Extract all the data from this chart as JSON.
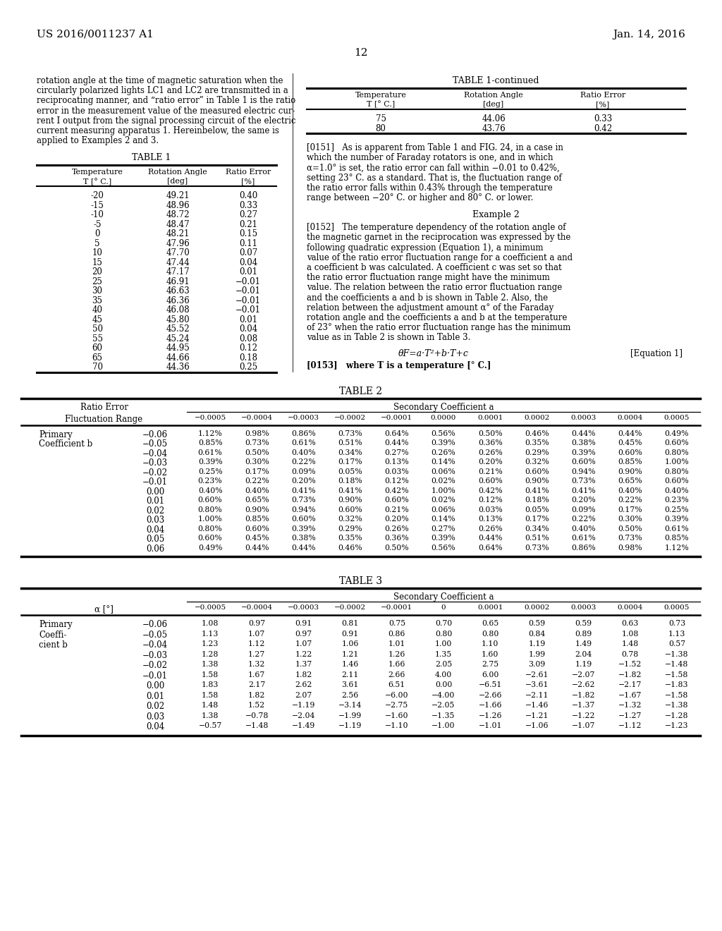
{
  "page_header_left": "US 2016/0011237 A1",
  "page_header_right": "Jan. 14, 2016",
  "page_number": "12",
  "left_col_text": [
    "rotation angle at the time of magnetic saturation when the",
    "circularly polarized lights LC1 and LC2 are transmitted in a",
    "reciprocating manner, and “ratio error” in Table 1 is the ratio",
    "error in the measurement value of the measured electric cur-",
    "rent I output from the signal processing circuit of the electric",
    "current measuring apparatus 1. Hereinbelow, the same is",
    "applied to Examples 2 and 3."
  ],
  "table1_title": "TABLE 1",
  "table1_data": [
    [
      "-20",
      "49.21",
      "0.40"
    ],
    [
      "-15",
      "48.96",
      "0.33"
    ],
    [
      "-10",
      "48.72",
      "0.27"
    ],
    [
      "-5",
      "48.47",
      "0.21"
    ],
    [
      "0",
      "48.21",
      "0.15"
    ],
    [
      "5",
      "47.96",
      "0.11"
    ],
    [
      "10",
      "47.70",
      "0.07"
    ],
    [
      "15",
      "47.44",
      "0.04"
    ],
    [
      "20",
      "47.17",
      "0.01"
    ],
    [
      "25",
      "46.91",
      "−0.01"
    ],
    [
      "30",
      "46.63",
      "−0.01"
    ],
    [
      "35",
      "46.36",
      "−0.01"
    ],
    [
      "40",
      "46.08",
      "−0.01"
    ],
    [
      "45",
      "45.80",
      "0.01"
    ],
    [
      "50",
      "45.52",
      "0.04"
    ],
    [
      "55",
      "45.24",
      "0.08"
    ],
    [
      "60",
      "44.95",
      "0.12"
    ],
    [
      "65",
      "44.66",
      "0.18"
    ],
    [
      "70",
      "44.36",
      "0.25"
    ]
  ],
  "table1c_title": "TABLE 1-continued",
  "table1c_data": [
    [
      "75",
      "44.06",
      "0.33"
    ],
    [
      "80",
      "43.76",
      "0.42"
    ]
  ],
  "para0151_lines": [
    "[0151]   As is apparent from Table 1 and FIG. 24, in a case in",
    "which the number of Faraday rotators is one, and in which",
    "α=1.0° is set, the ratio error can fall within −0.01 to 0.42%,",
    "setting 23° C. as a standard. That is, the fluctuation range of",
    "the ratio error falls within 0.43% through the temperature",
    "range between −20° C. or higher and 80° C. or lower."
  ],
  "example2_title": "Example 2",
  "para0152_lines": [
    "[0152]   The temperature dependency of the rotation angle of",
    "the magnetic garnet in the reciprocation was expressed by the",
    "following quadratic expression (Equation 1), a minimum",
    "value of the ratio error fluctuation range for a coefficient a and",
    "a coefficient b was calculated. A coefficient c was set so that",
    "the ratio error fluctuation range might have the minimum",
    "value. The relation between the ratio error fluctuation range",
    "and the coefficients a and b is shown in Table 2. Also, the",
    "relation between the adjustment amount α° of the Faraday",
    "rotation angle and the coefficients a and b at the temperature",
    "of 23° when the ratio error fluctuation range has the minimum",
    "value as in Table 2 is shown in Table 3."
  ],
  "equation": "θF=a·T²+b·T+c",
  "equation_label": "[Equation 1]",
  "para0153": "[0153]   where T is a temperature [° C.]",
  "table2_title": "TABLE 2",
  "table2_ratio_error": "Ratio Error",
  "table2_secondary": "Secondary Coefficient a",
  "table2_fluctuation": "Fluctuation Range",
  "table2_a_headers": [
    "−0.0005",
    "−0.0004",
    "−0.0003",
    "−0.0002",
    "−0.0001",
    "0.0000",
    "0.0001",
    "0.0002",
    "0.0003",
    "0.0004",
    "0.0005"
  ],
  "table2_primary_label": "Primary",
  "table2_coeffb_label": "Coefficient b",
  "table2_b_values": [
    "−0.06",
    "−0.05",
    "−0.04",
    "−0.03",
    "−0.02",
    "−0.01",
    "0.00",
    "0.01",
    "0.02",
    "0.03",
    "0.04",
    "0.05",
    "0.06"
  ],
  "table2_data": [
    [
      "1.12%",
      "0.98%",
      "0.86%",
      "0.73%",
      "0.64%",
      "0.56%",
      "0.50%",
      "0.46%",
      "0.44%",
      "0.44%",
      "0.49%"
    ],
    [
      "0.85%",
      "0.73%",
      "0.61%",
      "0.51%",
      "0.44%",
      "0.39%",
      "0.36%",
      "0.35%",
      "0.38%",
      "0.45%",
      "0.60%"
    ],
    [
      "0.61%",
      "0.50%",
      "0.40%",
      "0.34%",
      "0.27%",
      "0.26%",
      "0.26%",
      "0.29%",
      "0.39%",
      "0.60%",
      "0.80%"
    ],
    [
      "0.39%",
      "0.30%",
      "0.22%",
      "0.17%",
      "0.13%",
      "0.14%",
      "0.20%",
      "0.32%",
      "0.60%",
      "0.85%",
      "1.00%"
    ],
    [
      "0.25%",
      "0.17%",
      "0.09%",
      "0.05%",
      "0.03%",
      "0.06%",
      "0.21%",
      "0.60%",
      "0.94%",
      "0.90%",
      "0.80%"
    ],
    [
      "0.23%",
      "0.22%",
      "0.20%",
      "0.18%",
      "0.12%",
      "0.02%",
      "0.60%",
      "0.90%",
      "0.73%",
      "0.65%",
      "0.60%"
    ],
    [
      "0.40%",
      "0.40%",
      "0.41%",
      "0.41%",
      "0.42%",
      "1.00%",
      "0.42%",
      "0.41%",
      "0.41%",
      "0.40%",
      "0.40%"
    ],
    [
      "0.60%",
      "0.65%",
      "0.73%",
      "0.90%",
      "0.60%",
      "0.02%",
      "0.12%",
      "0.18%",
      "0.20%",
      "0.22%",
      "0.23%"
    ],
    [
      "0.80%",
      "0.90%",
      "0.94%",
      "0.60%",
      "0.21%",
      "0.06%",
      "0.03%",
      "0.05%",
      "0.09%",
      "0.17%",
      "0.25%"
    ],
    [
      "1.00%",
      "0.85%",
      "0.60%",
      "0.32%",
      "0.20%",
      "0.14%",
      "0.13%",
      "0.17%",
      "0.22%",
      "0.30%",
      "0.39%"
    ],
    [
      "0.80%",
      "0.60%",
      "0.39%",
      "0.29%",
      "0.26%",
      "0.27%",
      "0.26%",
      "0.34%",
      "0.40%",
      "0.50%",
      "0.61%"
    ],
    [
      "0.60%",
      "0.45%",
      "0.38%",
      "0.35%",
      "0.36%",
      "0.39%",
      "0.44%",
      "0.51%",
      "0.61%",
      "0.73%",
      "0.85%"
    ],
    [
      "0.49%",
      "0.44%",
      "0.44%",
      "0.46%",
      "0.50%",
      "0.56%",
      "0.64%",
      "0.73%",
      "0.86%",
      "0.98%",
      "1.12%"
    ]
  ],
  "table3_title": "TABLE 3",
  "table3_secondary": "Secondary Coefficient a",
  "table3_alpha_header": "α [°]",
  "table3_a_headers": [
    "−0.0005",
    "−0.0004",
    "−0.0003",
    "−0.0002",
    "−0.0001",
    "0",
    "0.0001",
    "0.0002",
    "0.0003",
    "0.0004",
    "0.0005"
  ],
  "table3_primary_label": "Primary",
  "table3_coeffi_label": "Coeffi-",
  "table3_cientb_label": "cient b",
  "table3_b_values": [
    "−0.06",
    "−0.05",
    "−0.04",
    "−0.03",
    "−0.02",
    "−0.01",
    "0.00",
    "0.01",
    "0.02",
    "0.03",
    "0.04"
  ],
  "table3_data": [
    [
      "1.08",
      "0.97",
      "0.91",
      "0.81",
      "0.75",
      "0.70",
      "0.65",
      "0.59",
      "0.59",
      "0.63",
      "0.73"
    ],
    [
      "1.13",
      "1.07",
      "0.97",
      "0.91",
      "0.86",
      "0.80",
      "0.80",
      "0.84",
      "0.89",
      "1.08",
      "1.13"
    ],
    [
      "1.23",
      "1.12",
      "1.07",
      "1.06",
      "1.01",
      "1.00",
      "1.10",
      "1.19",
      "1.49",
      "1.48",
      "0.57"
    ],
    [
      "1.28",
      "1.27",
      "1.22",
      "1.21",
      "1.26",
      "1.35",
      "1.60",
      "1.99",
      "2.04",
      "0.78",
      "−1.38"
    ],
    [
      "1.38",
      "1.32",
      "1.37",
      "1.46",
      "1.66",
      "2.05",
      "2.75",
      "3.09",
      "1.19",
      "−1.52",
      "−1.48"
    ],
    [
      "1.58",
      "1.67",
      "1.82",
      "2.11",
      "2.66",
      "4.00",
      "6.00",
      "−2.61",
      "−2.07",
      "−1.82",
      "−1.58"
    ],
    [
      "1.83",
      "2.17",
      "2.62",
      "3.61",
      "6.51",
      "0.00",
      "−6.51",
      "−3.61",
      "−2.62",
      "−2.17",
      "−1.83"
    ],
    [
      "1.58",
      "1.82",
      "2.07",
      "2.56",
      "−6.00",
      "−4.00",
      "−2.66",
      "−2.11",
      "−1.82",
      "−1.67",
      "−1.58"
    ],
    [
      "1.48",
      "1.52",
      "−1.19",
      "−3.14",
      "−2.75",
      "−2.05",
      "−1.66",
      "−1.46",
      "−1.37",
      "−1.32",
      "−1.38"
    ],
    [
      "1.38",
      "−0.78",
      "−2.04",
      "−1.99",
      "−1.60",
      "−1.35",
      "−1.26",
      "−1.21",
      "−1.22",
      "−1.27",
      "−1.28"
    ],
    [
      "−0.57",
      "−1.48",
      "−1.49",
      "−1.19",
      "−1.10",
      "−1.00",
      "−1.01",
      "−1.06",
      "−1.07",
      "−1.12",
      "−1.23"
    ]
  ]
}
